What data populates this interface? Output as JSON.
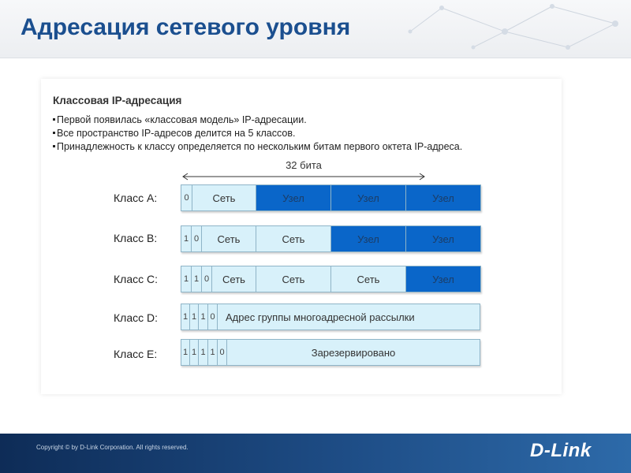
{
  "slide": {
    "title": "Адресация сетевого уровня"
  },
  "intro": {
    "heading": "Классовая IP-адресация",
    "bullets": [
      "Первой появилась «классовая модель» IP-адресации.",
      "Все пространство IP-адресов делится на 5 классов.",
      "Принадлежность к классу определяется по нескольким битам первого октета IP-адреса."
    ]
  },
  "ruler": {
    "label": "32 бита"
  },
  "classes": [
    {
      "label": "Класс A:",
      "bits": [
        "0"
      ],
      "fields": [
        "Сеть",
        "Узел",
        "Узел",
        "Узел"
      ]
    },
    {
      "label": "Класс B:",
      "bits": [
        "1",
        "0"
      ],
      "fields": [
        "Сеть",
        "Сеть",
        "Узел",
        "Узел"
      ]
    },
    {
      "label": "Класс C:",
      "bits": [
        "1",
        "1",
        "0"
      ],
      "fields": [
        "Сеть",
        "Сеть",
        "Сеть",
        "Узел"
      ]
    },
    {
      "label": "Класс D:",
      "bits": [
        "1",
        "1",
        "1",
        "0"
      ],
      "fields": [
        "Адрес группы многоадресной рассылки"
      ]
    },
    {
      "label": "Класс E:",
      "bits": [
        "1",
        "1",
        "1",
        "1",
        "0"
      ],
      "fields": [
        "Зарезервировано"
      ]
    }
  ],
  "colors": {
    "title": "#1b4f8f",
    "network_field": "#d8f1fa",
    "host_field": "#0a66c9",
    "footer": "#1e4d86"
  },
  "footer": {
    "copyright": "Copyright © by D-Link Corporation. All rights reserved.",
    "logo": "D-Link"
  }
}
